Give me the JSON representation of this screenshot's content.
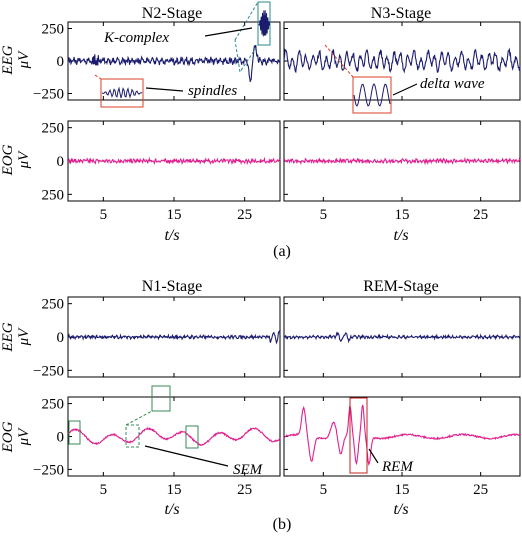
{
  "colors": {
    "eeg": "#1c1c6e",
    "eog": "#e0208f",
    "frame": "#000000",
    "zoom_teal": "#2a8a8a",
    "zoom_red": "#d9402a",
    "zoom_green": "#3a8a55"
  },
  "figure": {
    "panel_a_label": "(a)",
    "panel_b_label": "(b)",
    "xlabel": "t/s",
    "eeg_ylabel": "EEG",
    "eog_ylabel": "EOG",
    "unit_label": "μV"
  },
  "chart_data": [
    {
      "type": "line",
      "title": "N2-Stage",
      "panel": "a",
      "rows": [
        "EEG",
        "EOG"
      ],
      "xlim": [
        0,
        30
      ],
      "xticks": [
        5,
        15,
        25
      ],
      "eeg_yticks": [
        "250",
        "0",
        "−250"
      ],
      "eog_yticks": [
        "250",
        "0",
        "250"
      ],
      "eeg_ylim": [
        -300,
        300
      ],
      "eog_ylim": [
        -300,
        300
      ],
      "series": [
        {
          "name": "EEG",
          "pattern": "n2_eeg",
          "amplitude": 20
        },
        {
          "name": "EOG",
          "pattern": "eog_quiet",
          "amplitude": 15
        }
      ],
      "annotations": [
        {
          "text": "K-complex",
          "t": 26.3
        },
        {
          "text": "spindles",
          "t": 6.5
        }
      ]
    },
    {
      "type": "line",
      "title": "N3-Stage",
      "panel": "a",
      "rows": [
        "EEG",
        "EOG"
      ],
      "xlim": [
        0,
        30
      ],
      "xticks": [
        5,
        15,
        25
      ],
      "series": [
        {
          "name": "EEG",
          "pattern": "n3_eeg",
          "amplitude": 55
        },
        {
          "name": "EOG",
          "pattern": "eog_quiet",
          "amplitude": 15
        }
      ],
      "annotations": [
        {
          "text": "delta wave",
          "t": 8.5
        }
      ]
    },
    {
      "type": "line",
      "title": "N1-Stage",
      "panel": "b",
      "rows": [
        "EEG",
        "EOG"
      ],
      "xlim": [
        0,
        30
      ],
      "xticks": [
        5,
        15,
        25
      ],
      "eeg_yticks": [
        "250",
        "0",
        "−250"
      ],
      "eog_yticks": [
        "250",
        "0",
        "−250"
      ],
      "series": [
        {
          "name": "EEG",
          "pattern": "n1_eeg",
          "amplitude": 15
        },
        {
          "name": "EOG",
          "pattern": "sem_eog",
          "amplitude": 70
        }
      ],
      "annotations": [
        {
          "text": "SEM",
          "t": 9.5
        }
      ]
    },
    {
      "type": "line",
      "title": "REM-Stage",
      "panel": "b",
      "rows": [
        "EEG",
        "EOG"
      ],
      "xlim": [
        0,
        30
      ],
      "xticks": [
        5,
        15,
        25
      ],
      "series": [
        {
          "name": "EEG",
          "pattern": "rem_eeg",
          "amplitude": 15
        },
        {
          "name": "EOG",
          "pattern": "rem_eog",
          "amplitude": 230
        }
      ],
      "annotations": [
        {
          "text": "REM",
          "t": 9.0
        }
      ]
    }
  ]
}
